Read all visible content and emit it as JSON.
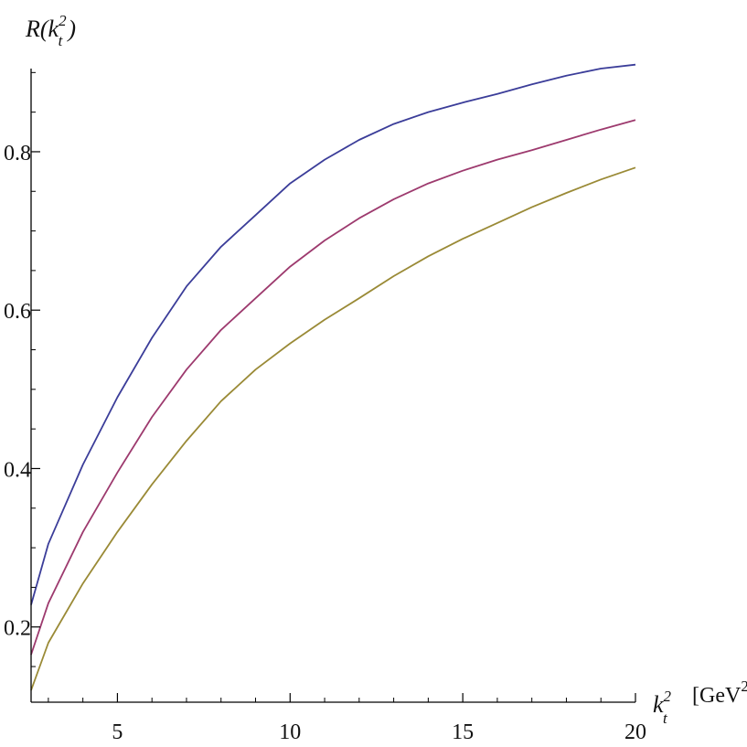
{
  "chart_data": {
    "type": "line",
    "xlabel": {
      "base": "k",
      "sup": "2",
      "sub": "t",
      "unit_main": "[GeV",
      "unit_sup": "2",
      "unit_close": "]"
    },
    "ylabel": {
      "prefix": "R(",
      "base": "k",
      "sup": "2",
      "sub": "t",
      "suffix": ")"
    },
    "xlim": [
      2.5,
      20
    ],
    "ylim": [
      0.105,
      0.905
    ],
    "x_ticks": [
      5,
      10,
      15,
      20
    ],
    "x_tick_labels": [
      "5",
      "10",
      "15",
      "20"
    ],
    "y_ticks": [
      0.2,
      0.4,
      0.6,
      0.8
    ],
    "y_tick_labels": [
      "0.2",
      "0.4",
      "0.6",
      "0.8"
    ],
    "grid": false,
    "colors": {
      "axis": "#000000",
      "series_1": "#3b3d99",
      "series_2": "#9d3a6e",
      "series_3": "#9a8a36"
    },
    "series": [
      {
        "color": "#3b3d99",
        "x": [
          2.5,
          3,
          4,
          5,
          6,
          7,
          8,
          9,
          10,
          11,
          12,
          13,
          14,
          15,
          16,
          17,
          18,
          19,
          20
        ],
        "y": [
          0.228,
          0.305,
          0.405,
          0.49,
          0.565,
          0.63,
          0.68,
          0.72,
          0.76,
          0.79,
          0.815,
          0.835,
          0.85,
          0.862,
          0.873,
          0.885,
          0.896,
          0.905,
          0.91
        ]
      },
      {
        "color": "#9d3a6e",
        "x": [
          2.5,
          3,
          4,
          5,
          6,
          7,
          8,
          9,
          10,
          11,
          12,
          13,
          14,
          15,
          16,
          17,
          18,
          19,
          20
        ],
        "y": [
          0.165,
          0.23,
          0.32,
          0.395,
          0.465,
          0.525,
          0.575,
          0.615,
          0.655,
          0.688,
          0.716,
          0.74,
          0.76,
          0.776,
          0.79,
          0.802,
          0.815,
          0.828,
          0.84
        ]
      },
      {
        "color": "#9a8a36",
        "x": [
          2.5,
          3,
          4,
          5,
          6,
          7,
          8,
          9,
          10,
          11,
          12,
          13,
          14,
          15,
          16,
          17,
          18,
          19,
          20
        ],
        "y": [
          0.12,
          0.18,
          0.255,
          0.32,
          0.38,
          0.435,
          0.485,
          0.525,
          0.558,
          0.588,
          0.615,
          0.643,
          0.668,
          0.69,
          0.71,
          0.73,
          0.748,
          0.765,
          0.78
        ]
      }
    ]
  }
}
